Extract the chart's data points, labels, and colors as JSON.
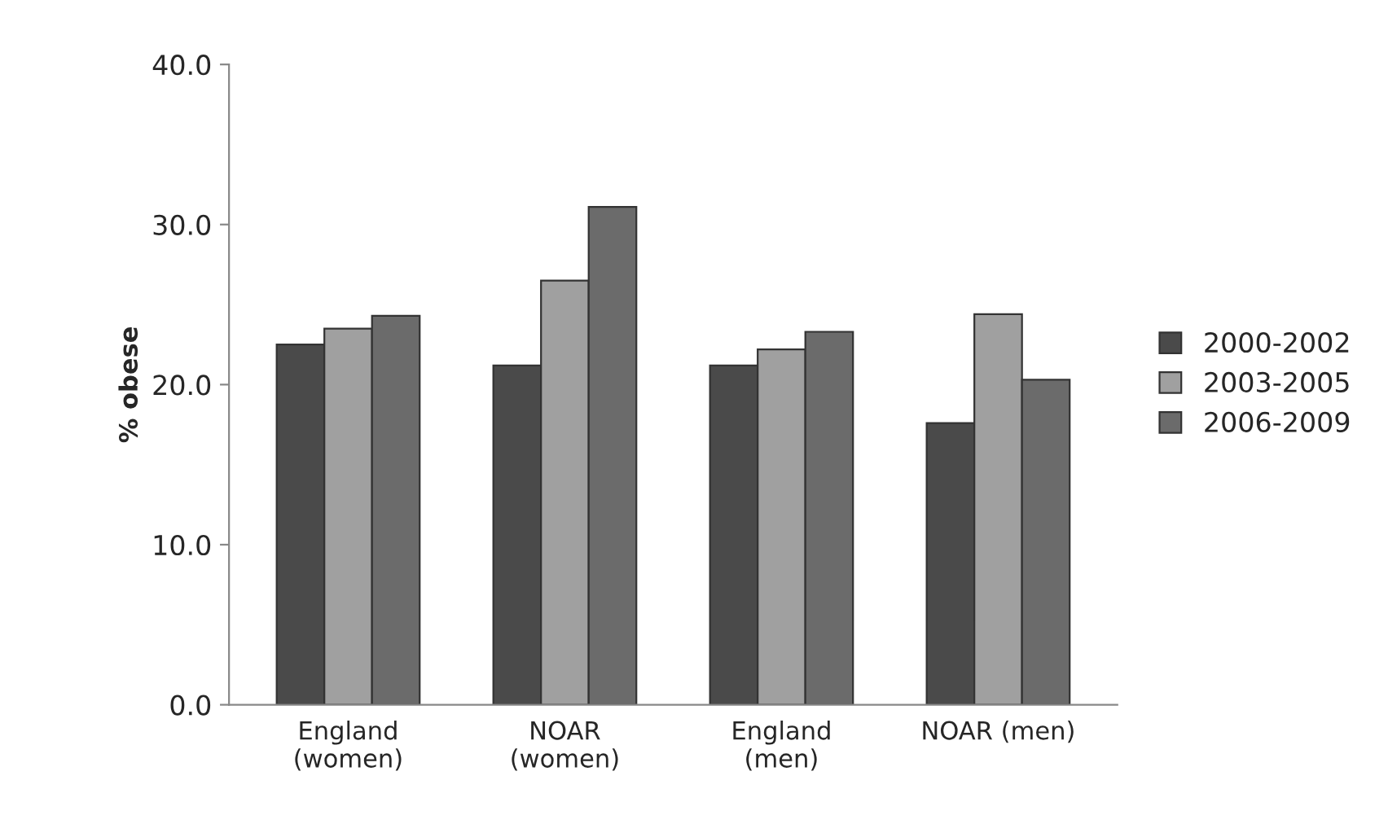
{
  "chart_data": {
    "type": "bar",
    "ylabel": "% obese",
    "categories": [
      "England\n(women)",
      "NOAR\n(women)",
      "England\n(men)",
      "NOAR (men)"
    ],
    "series": [
      {
        "name": "2000-2002",
        "color": "#4a4a4a",
        "values": [
          22.5,
          21.2,
          21.2,
          17.6
        ]
      },
      {
        "name": "2003-2005",
        "color": "#a0a0a0",
        "values": [
          23.5,
          26.5,
          22.2,
          24.4
        ]
      },
      {
        "name": "2006-2009",
        "color": "#6b6b6b",
        "values": [
          24.3,
          31.1,
          23.3,
          20.3
        ]
      }
    ],
    "ylim": [
      0,
      40
    ],
    "yticks": [
      {
        "value": 0,
        "label": "0.0"
      },
      {
        "value": 10,
        "label": "10.0"
      },
      {
        "value": 20,
        "label": "20.0"
      },
      {
        "value": 30,
        "label": "30.0"
      },
      {
        "value": 40,
        "label": "40.0"
      }
    ],
    "grid": false,
    "legend": "right"
  }
}
